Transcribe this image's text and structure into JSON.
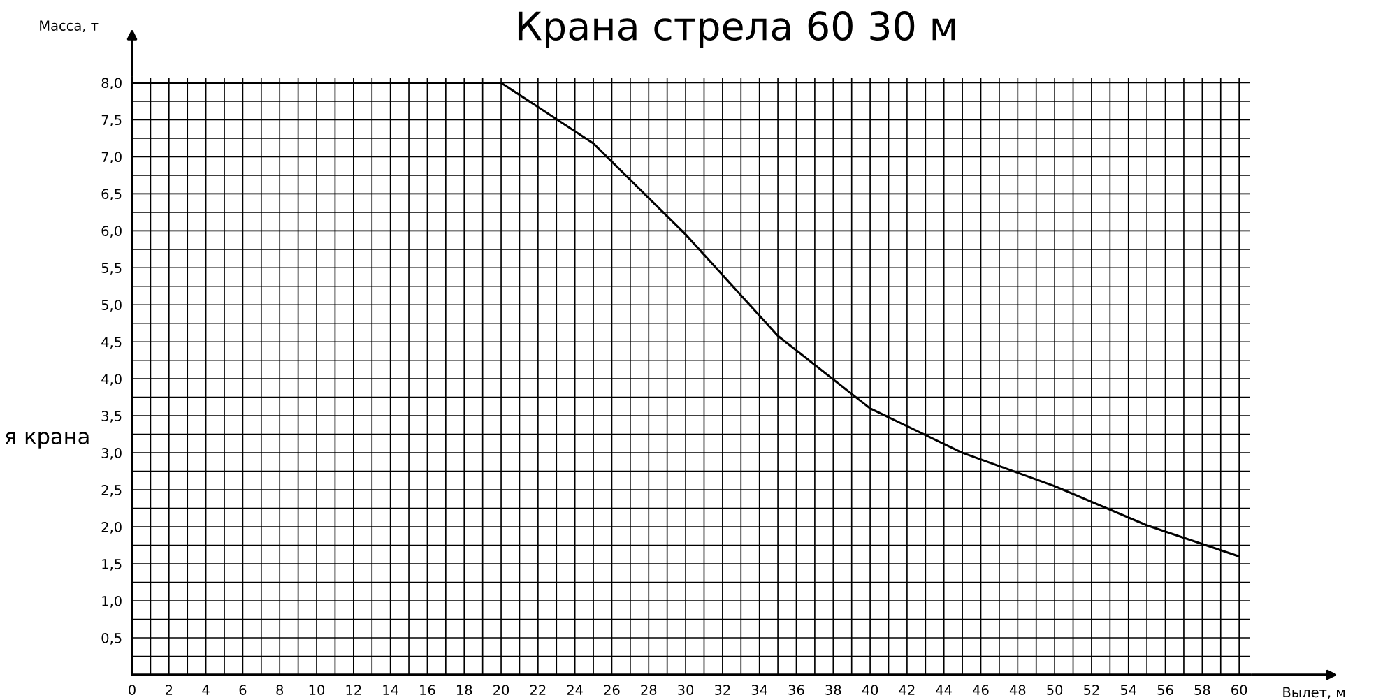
{
  "chart_data": {
    "type": "line",
    "title": "Крана стрела 60 30 м",
    "xlabel": "Вылет, м",
    "ylabel": "Масса, т",
    "annotations": [
      "я крана"
    ],
    "x": [
      0,
      20,
      25,
      30,
      35,
      40,
      45,
      50,
      55,
      60
    ],
    "series": [
      {
        "color": "#000000",
        "values": [
          8.0,
          8.0,
          7.18,
          5.95,
          4.58,
          3.6,
          3.0,
          2.55,
          2.02,
          1.6
        ]
      }
    ],
    "xlim": [
      0,
      60.6
    ],
    "ylim": [
      0,
      8.07
    ],
    "xticks": [
      0,
      {
        "value": 1,
        "label": null
      },
      2,
      {
        "value": 3,
        "label": null
      },
      4,
      {
        "value": 5,
        "label": null
      },
      6,
      {
        "value": 7,
        "label": null
      },
      8,
      {
        "value": 9,
        "label": null
      },
      10,
      {
        "value": 11,
        "label": null
      },
      12,
      {
        "value": 13,
        "label": null
      },
      14,
      {
        "value": 15,
        "label": null
      },
      16,
      {
        "value": 17,
        "label": null
      },
      18,
      {
        "value": 19,
        "label": null
      },
      20,
      {
        "value": 21,
        "label": null
      },
      22,
      {
        "value": 23,
        "label": null
      },
      24,
      {
        "value": 25,
        "label": null
      },
      26,
      {
        "value": 27,
        "label": null
      },
      28,
      {
        "value": 29,
        "label": null
      },
      30,
      {
        "value": 31,
        "label": null
      },
      32,
      {
        "value": 33,
        "label": null
      },
      34,
      {
        "value": 35,
        "label": null
      },
      36,
      {
        "value": 37,
        "label": null
      },
      38,
      {
        "value": 39,
        "label": null
      },
      40,
      {
        "value": 41,
        "label": null
      },
      42,
      {
        "value": 43,
        "label": null
      },
      44,
      {
        "value": 45,
        "label": null
      },
      46,
      {
        "value": 47,
        "label": null
      },
      48,
      {
        "value": 49,
        "label": null
      },
      50,
      {
        "value": 51,
        "label": null
      },
      52,
      {
        "value": 53,
        "label": null
      },
      54,
      {
        "value": 55,
        "label": null
      },
      56,
      {
        "value": 57,
        "label": null
      },
      58,
      {
        "value": 59,
        "label": null
      },
      60
    ],
    "yticks": [
      {
        "value": 0.25,
        "label": null
      },
      {
        "value": 0.5,
        "label": "0,5"
      },
      {
        "value": 0.75,
        "label": null
      },
      {
        "value": 1.0,
        "label": "1,0"
      },
      {
        "value": 1.25,
        "label": null
      },
      {
        "value": 1.5,
        "label": "1,5"
      },
      {
        "value": 1.75,
        "label": null
      },
      {
        "value": 2.0,
        "label": "2,0"
      },
      {
        "value": 2.25,
        "label": null
      },
      {
        "value": 2.5,
        "label": "2,5"
      },
      {
        "value": 2.75,
        "label": null
      },
      {
        "value": 3.0,
        "label": "3,0"
      },
      {
        "value": 3.25,
        "label": null
      },
      {
        "value": 3.5,
        "label": "3,5"
      },
      {
        "value": 3.75,
        "label": null
      },
      {
        "value": 4.0,
        "label": "4,0"
      },
      {
        "value": 4.25,
        "label": null
      },
      {
        "value": 4.5,
        "label": "4,5"
      },
      {
        "value": 4.75,
        "label": null
      },
      {
        "value": 5.0,
        "label": "5,0"
      },
      {
        "value": 5.25,
        "label": null
      },
      {
        "value": 5.5,
        "label": "5,5"
      },
      {
        "value": 5.75,
        "label": null
      },
      {
        "value": 6.0,
        "label": "6,0"
      },
      {
        "value": 6.25,
        "label": null
      },
      {
        "value": 6.5,
        "label": "6,5"
      },
      {
        "value": 6.75,
        "label": null
      },
      {
        "value": 7.0,
        "label": "7,0"
      },
      {
        "value": 7.25,
        "label": null
      },
      {
        "value": 7.5,
        "label": "7,5"
      },
      {
        "value": 7.75,
        "label": null
      },
      {
        "value": 8.0,
        "label": "8,0"
      }
    ],
    "grid": true,
    "marker": "none",
    "line_style": "solid"
  }
}
